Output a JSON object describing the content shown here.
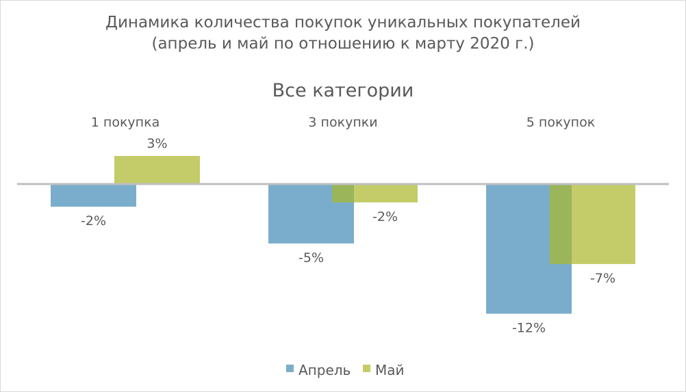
{
  "chart_data": {
    "type": "bar",
    "title": "Динамика количества покупок уникальных покупателей",
    "subtitle": "(апрель и май по отношению к марту 2020 г.)",
    "section_title": "Все категории",
    "categories": [
      "1 покупка",
      "3 покупки",
      "5 покупок"
    ],
    "series": [
      {
        "name": "Апрель",
        "color": "#7AADCB",
        "values": [
          -2.1,
          -5.5,
          -12.0
        ],
        "labels": [
          "-2%",
          "-5%",
          "-12%"
        ]
      },
      {
        "name": "Май",
        "color": "#C3CC68",
        "values": [
          2.6,
          -1.7,
          -7.4
        ],
        "labels": [
          "3%",
          "-2%",
          "-7%"
        ]
      }
    ],
    "overlap_color": "#9AB55A",
    "ylim": [
      -14,
      6
    ],
    "grid": false,
    "legend": "bottom",
    "xlabel": "",
    "ylabel": ""
  }
}
